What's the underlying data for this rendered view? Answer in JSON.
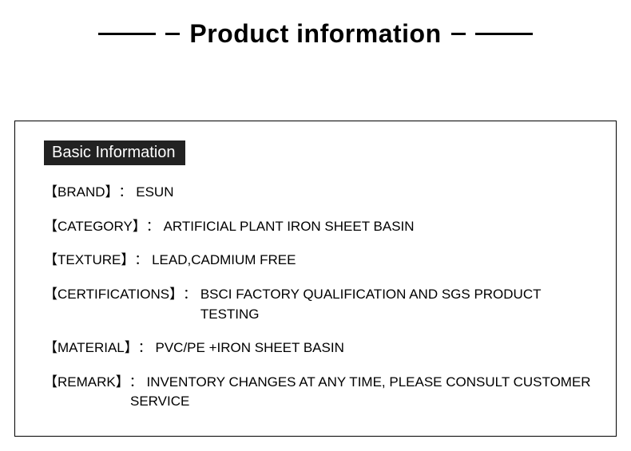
{
  "header": {
    "title": "Product information"
  },
  "panel": {
    "badge": "Basic Information",
    "rows": [
      {
        "label": "【BRAND】",
        "value": "ESUN"
      },
      {
        "label": "【CATEGORY】",
        "value": "ARTIFICIAL PLANT IRON SHEET BASIN"
      },
      {
        "label": "【TEXTURE】",
        "value": "LEAD,CADMIUM FREE"
      },
      {
        "label": "【CERTIFICATIONS】",
        "value": "BSCI FACTORY QUALIFICATION AND SGS PRODUCT TESTING"
      },
      {
        "label": "【MATERIAL】",
        "value": "PVC/PE +IRON SHEET BASIN"
      },
      {
        "label": "【REMARK】",
        "value": "INVENTORY CHANGES AT ANY TIME, PLEASE CONSULT CUSTOMER",
        "continuation": "SERVICE"
      }
    ],
    "separator": "： "
  },
  "style": {
    "background_color": "#ffffff",
    "text_color": "#000000",
    "badge_bg": "#222222",
    "badge_fg": "#ffffff",
    "title_fontsize": 32,
    "row_fontsize": 17,
    "rule_color": "#000000"
  }
}
